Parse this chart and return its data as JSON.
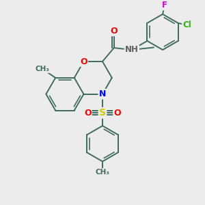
{
  "bg_color": "#ececec",
  "bond_color": "#3d6b5e",
  "bond_width": 1.4,
  "atom_colors": {
    "O": "#ff0000",
    "N": "#0000ff",
    "S": "#cccc00",
    "Cl": "#22bb00",
    "F": "#dd00dd",
    "H": "#606060",
    "C": "#3d6b5e"
  },
  "figsize": [
    3.0,
    3.0
  ],
  "dpi": 100,
  "xlim": [
    0,
    10
  ],
  "ylim": [
    0,
    10
  ]
}
